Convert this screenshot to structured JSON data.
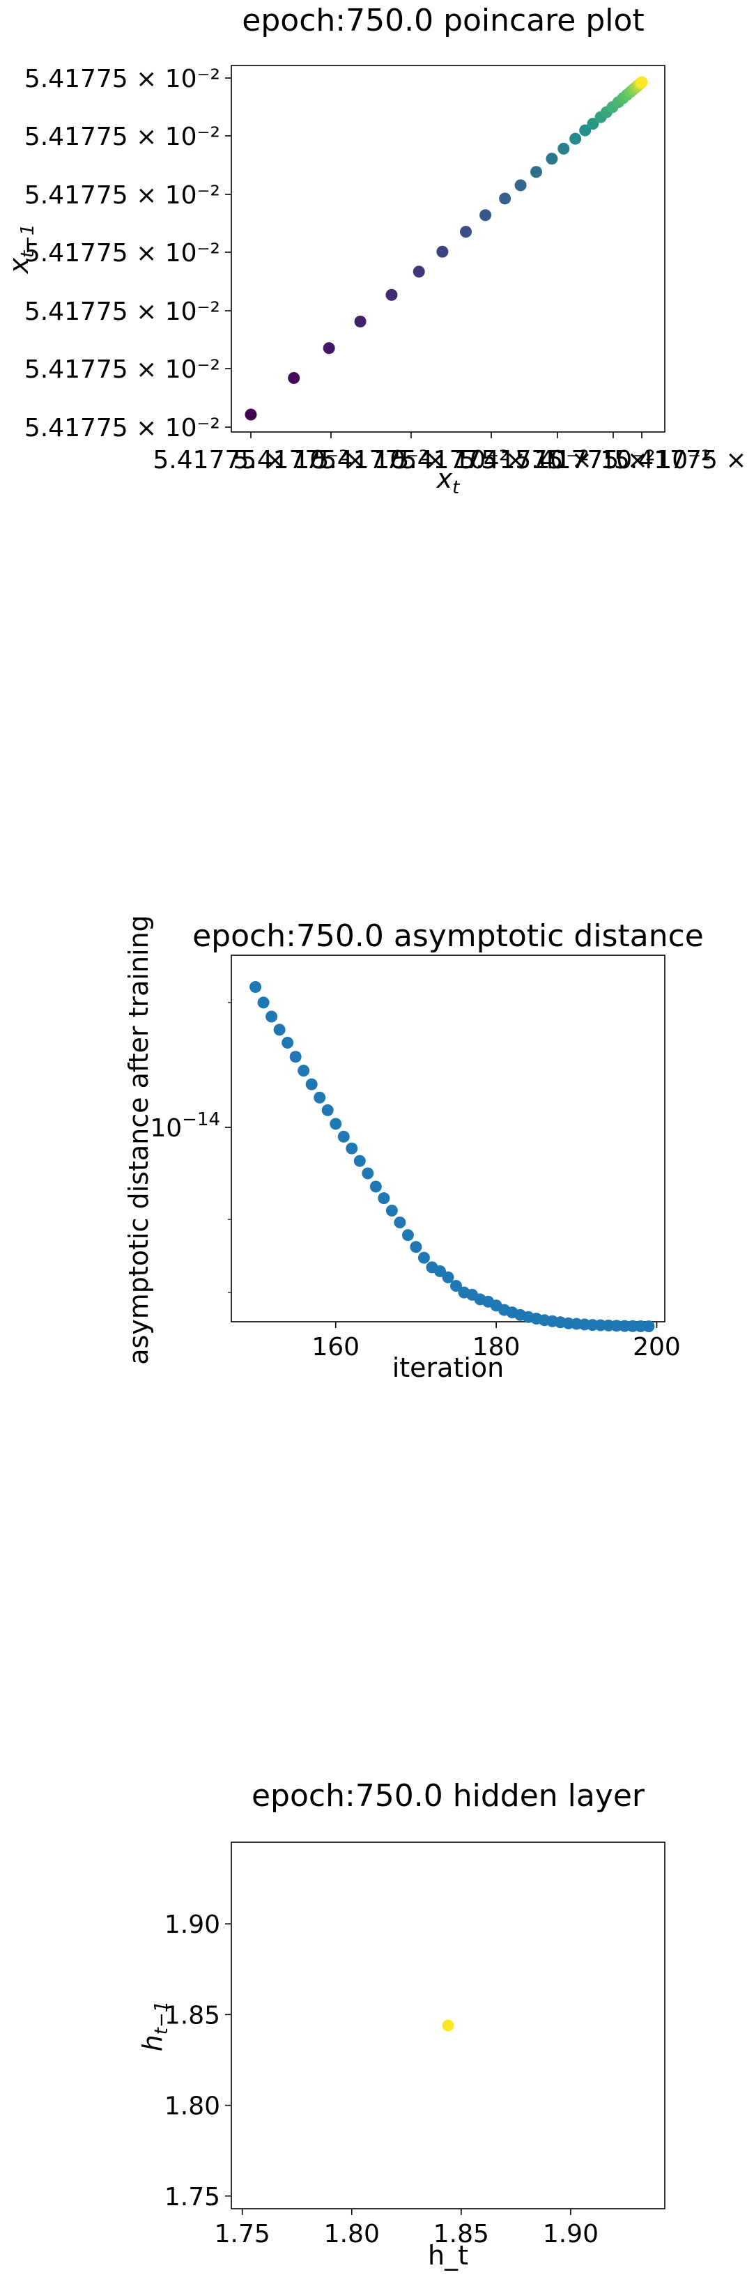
{
  "chart_data": [
    {
      "type": "scatter",
      "title": "epoch:750.0 poincare plot",
      "xlabel_base": "x",
      "xlabel_sub": "t",
      "ylabel_base": "x",
      "ylabel_sub": "t−1",
      "colormap": "viridis",
      "colormap_stops": [
        "#440154",
        "#3b528b",
        "#21918c",
        "#5ec962",
        "#fde725"
      ],
      "x_tick_labels": [
        "5.41775 × 10⁻²",
        "5.41775 × 10⁻²",
        "5.41775 × 10⁻²",
        "5.41775 × 10⁻²",
        "5.41775 × 10⁻²",
        "5.41775 × 10⁻²",
        "5.41775 × 10⁻²"
      ],
      "y_tick_labels": [
        "5.41775 × 10⁻²",
        "5.41775 × 10⁻²",
        "5.41775 × 10⁻²",
        "5.41775 × 10⁻²",
        "5.41775 × 10⁻²",
        "5.41775 × 10⁻²",
        "5.41775 × 10⁻²"
      ],
      "x_rel": [
        0.0,
        0.11,
        0.2,
        0.28,
        0.36,
        0.43,
        0.49,
        0.55,
        0.6,
        0.65,
        0.69,
        0.73,
        0.77,
        0.8,
        0.83,
        0.855,
        0.875,
        0.895,
        0.91,
        0.925,
        0.94,
        0.952,
        0.962,
        0.971,
        0.978,
        0.984,
        0.989,
        0.993,
        0.996,
        0.998,
        1.0
      ],
      "y_rel": [
        0.0,
        0.11,
        0.2,
        0.28,
        0.36,
        0.43,
        0.49,
        0.55,
        0.6,
        0.65,
        0.69,
        0.73,
        0.77,
        0.8,
        0.83,
        0.855,
        0.875,
        0.895,
        0.91,
        0.925,
        0.94,
        0.952,
        0.962,
        0.971,
        0.978,
        0.984,
        0.989,
        0.993,
        0.996,
        0.998,
        1.0
      ]
    },
    {
      "type": "scatter",
      "title": "epoch:750.0 asymptotic distance",
      "xlabel": "iteration",
      "ylabel": "asymptotic distance after training",
      "yscale": "log",
      "color": "#1f77b4",
      "xlim": [
        147,
        201
      ],
      "ylim": [
        3.4e-15,
        2.6e-14
      ],
      "x_ticks": [
        160,
        180,
        200
      ],
      "y_tick_base": "10",
      "y_tick_exp": "−14",
      "y_tick_value": 1e-14,
      "x": [
        150,
        151,
        152,
        153,
        154,
        155,
        156,
        157,
        158,
        159,
        160,
        161,
        162,
        163,
        164,
        165,
        166,
        167,
        168,
        169,
        170,
        171,
        172,
        173,
        174,
        175,
        176,
        177,
        178,
        179,
        180,
        181,
        182,
        183,
        184,
        185,
        186,
        187,
        188,
        189,
        190,
        191,
        192,
        193,
        194,
        195,
        196,
        197,
        198,
        199
      ],
      "y": [
        2.18e-14,
        2e-14,
        1.85e-14,
        1.72e-14,
        1.6e-14,
        1.48e-14,
        1.37e-14,
        1.27e-14,
        1.18e-14,
        1.1e-14,
        1.02e-14,
        9.5e-15,
        8.9e-15,
        8.3e-15,
        7.75e-15,
        7.2e-15,
        6.75e-15,
        6.3e-15,
        5.9e-15,
        5.5e-15,
        5.15e-15,
        4.85e-15,
        4.6e-15,
        4.5e-15,
        4.35e-15,
        4.15e-15,
        4e-15,
        3.95e-15,
        3.85e-15,
        3.8e-15,
        3.72e-15,
        3.63e-15,
        3.58e-15,
        3.53e-15,
        3.49e-15,
        3.46e-15,
        3.43e-15,
        3.41e-15,
        3.39e-15,
        3.37e-15,
        3.36e-15,
        3.35e-15,
        3.34e-15,
        3.335e-15,
        3.33e-15,
        3.325e-15,
        3.32e-15,
        3.318e-15,
        3.316e-15,
        3.314e-15
      ]
    },
    {
      "type": "scatter",
      "title": "epoch:750.0 hidden layer",
      "xlabel": "h_t",
      "ylabel_base": "h",
      "ylabel_sub": "t−1",
      "color": "#fde725",
      "xlim": [
        1.745,
        1.943
      ],
      "ylim": [
        1.743,
        1.945
      ],
      "x_ticks": [
        1.75,
        1.8,
        1.85,
        1.9
      ],
      "y_ticks": [
        1.75,
        1.8,
        1.85,
        1.9
      ],
      "x_tick_labels": [
        "1.75",
        "1.80",
        "1.85",
        "1.90"
      ],
      "y_tick_labels": [
        "1.75",
        "1.80",
        "1.85",
        "1.90"
      ],
      "x": [
        1.844
      ],
      "y": [
        1.844
      ]
    }
  ]
}
